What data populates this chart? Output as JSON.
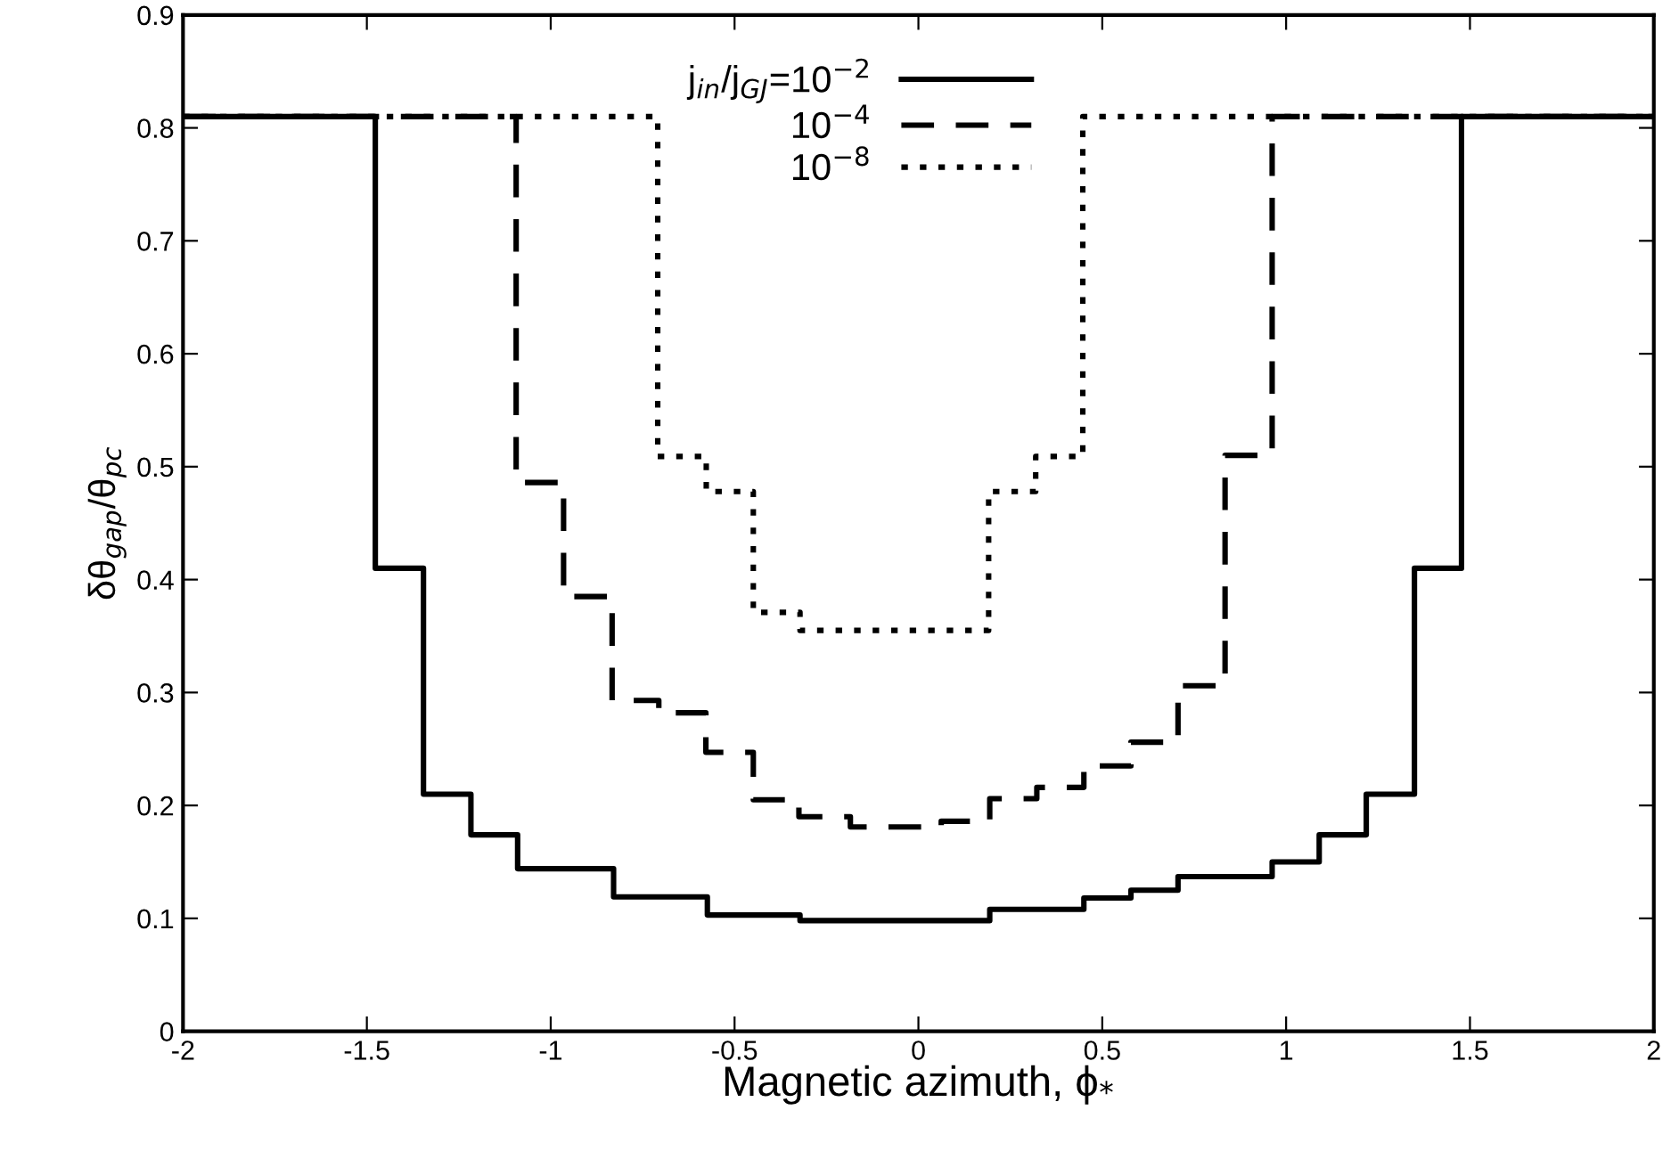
{
  "chart_data": {
    "type": "step",
    "xlabel": "Magnetic azimuth, ϕ$_{*}$",
    "ylabel": "δθ$_{gap}$/θ$_{pc}$",
    "xlim": [
      -2,
      2
    ],
    "ylim": [
      0,
      0.9
    ],
    "xticks": [
      -2,
      -1.5,
      -1,
      -0.5,
      0,
      0.5,
      1,
      1.5,
      2
    ],
    "yticks": [
      0,
      0.1,
      0.2,
      0.3,
      0.4,
      0.5,
      0.6,
      0.7,
      0.8,
      0.9
    ],
    "grid": false,
    "legend": "top",
    "marker": "none",
    "series": [
      {
        "name": "j$_{in}$/j$_{GJ}$=10$^{−2}$",
        "color": "#000000",
        "line_style": "solid",
        "x": [
          -2,
          -1.477,
          -1.346,
          -1.217,
          -1.09,
          -0.829,
          -0.574,
          -0.322,
          0.194,
          0.45,
          0.578,
          0.706,
          0.962,
          1.09,
          1.218,
          1.349,
          1.477,
          2
        ],
        "values": [
          0.81,
          0.41,
          0.21,
          0.174,
          0.144,
          0.119,
          0.103,
          0.098,
          0.108,
          0.118,
          0.125,
          0.137,
          0.15,
          0.174,
          0.21,
          0.41,
          0.81,
          0.81
        ]
      },
      {
        "name": "10$^{−4}$",
        "color": "#000000",
        "line_style": "dashed",
        "x": [
          -2,
          -1.094,
          -0.965,
          -0.833,
          -0.706,
          -0.578,
          -0.449,
          -0.325,
          -0.185,
          0.062,
          0.194,
          0.322,
          0.45,
          0.578,
          0.706,
          0.834,
          0.962,
          2
        ],
        "values": [
          0.81,
          0.486,
          0.385,
          0.293,
          0.282,
          0.247,
          0.205,
          0.19,
          0.181,
          0.186,
          0.206,
          0.216,
          0.235,
          0.256,
          0.306,
          0.51,
          0.81,
          0.81
        ]
      },
      {
        "name": "10$^{−8}$",
        "color": "#000000",
        "line_style": "dotted",
        "x": [
          -2,
          -0.709,
          -0.577,
          -0.449,
          -0.322,
          0.191,
          0.319,
          0.447,
          2
        ],
        "values": [
          0.81,
          0.509,
          0.478,
          0.371,
          0.355,
          0.478,
          0.509,
          0.81,
          0.81
        ]
      }
    ]
  }
}
